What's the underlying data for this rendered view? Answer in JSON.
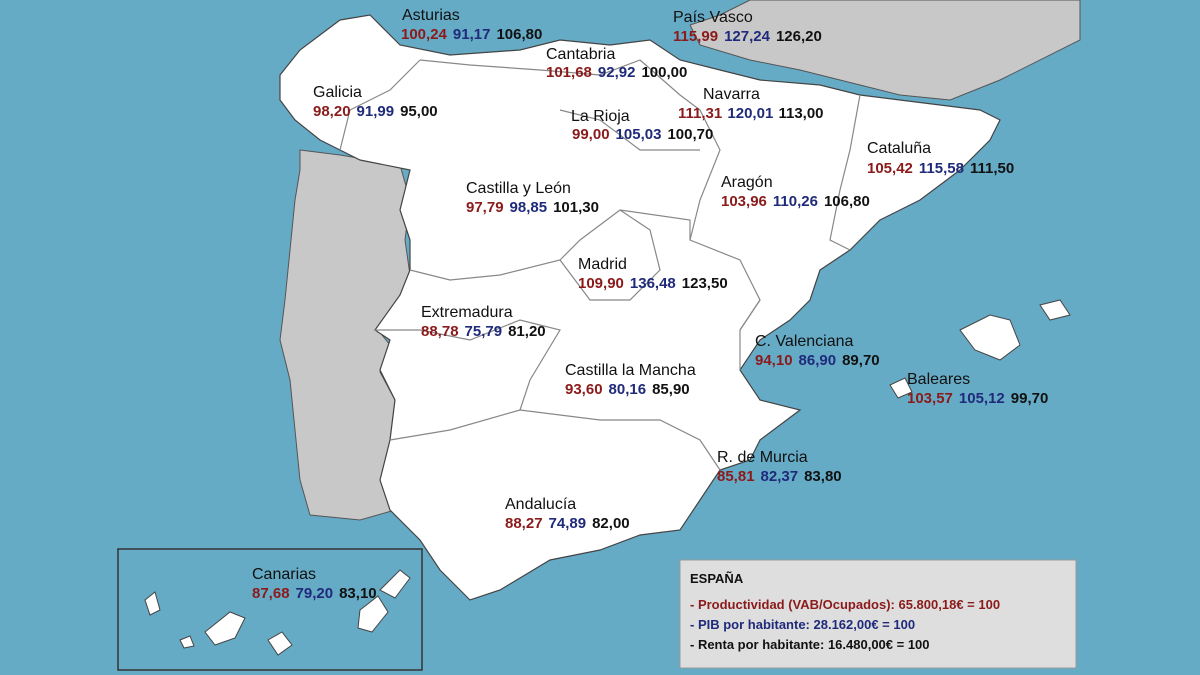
{
  "regions": [
    {
      "name": "Asturias",
      "productividad": "100,24",
      "pib": "91,17",
      "renta": "106,80"
    },
    {
      "name": "País Vasco",
      "productividad": "115,99",
      "pib": "127,24",
      "renta": "126,20"
    },
    {
      "name": "Cantabria",
      "productividad": "101,68",
      "pib": "92,92",
      "renta": "100,00"
    },
    {
      "name": "Galicia",
      "productividad": "98,20",
      "pib": "91,99",
      "renta": "95,00"
    },
    {
      "name": "Navarra",
      "productividad": "111,31",
      "pib": "120,01",
      "renta": "113,00"
    },
    {
      "name": "La Rioja",
      "productividad": "99,00",
      "pib": "105,03",
      "renta": "100,70"
    },
    {
      "name": "Cataluña",
      "productividad": "105,42",
      "pib": "115,58",
      "renta": "111,50"
    },
    {
      "name": "Castilla y León",
      "productividad": "97,79",
      "pib": "98,85",
      "renta": "101,30"
    },
    {
      "name": "Aragón",
      "productividad": "103,96",
      "pib": "110,26",
      "renta": "106,80"
    },
    {
      "name": "Madrid",
      "productividad": "109,90",
      "pib": "136,48",
      "renta": "123,50"
    },
    {
      "name": "Extremadura",
      "productividad": "88,78",
      "pib": "75,79",
      "renta": "81,20"
    },
    {
      "name": "C. Valenciana",
      "productividad": "94,10",
      "pib": "86,90",
      "renta": "89,70"
    },
    {
      "name": "Castilla la Mancha",
      "productividad": "93,60",
      "pib": "80,16",
      "renta": "85,90"
    },
    {
      "name": "Baleares",
      "productividad": "103,57",
      "pib": "105,12",
      "renta": "99,70"
    },
    {
      "name": "R. de Murcia",
      "productividad": "85,81",
      "pib": "82,37",
      "renta": "83,80"
    },
    {
      "name": "Andalucía",
      "productividad": "88,27",
      "pib": "74,89",
      "renta": "82,00"
    },
    {
      "name": "Canarias",
      "productividad": "87,68",
      "pib": "79,20",
      "renta": "83,10"
    }
  ],
  "legend": {
    "title": "ESPAÑA",
    "productividad": "- Productividad (VAB/Ocupados):  65.800,18€ = 100",
    "pib": "- PIB por habitante:    28.162,00€ = 100",
    "renta": "- Renta por habitante:    16.480,00€ = 100"
  }
}
